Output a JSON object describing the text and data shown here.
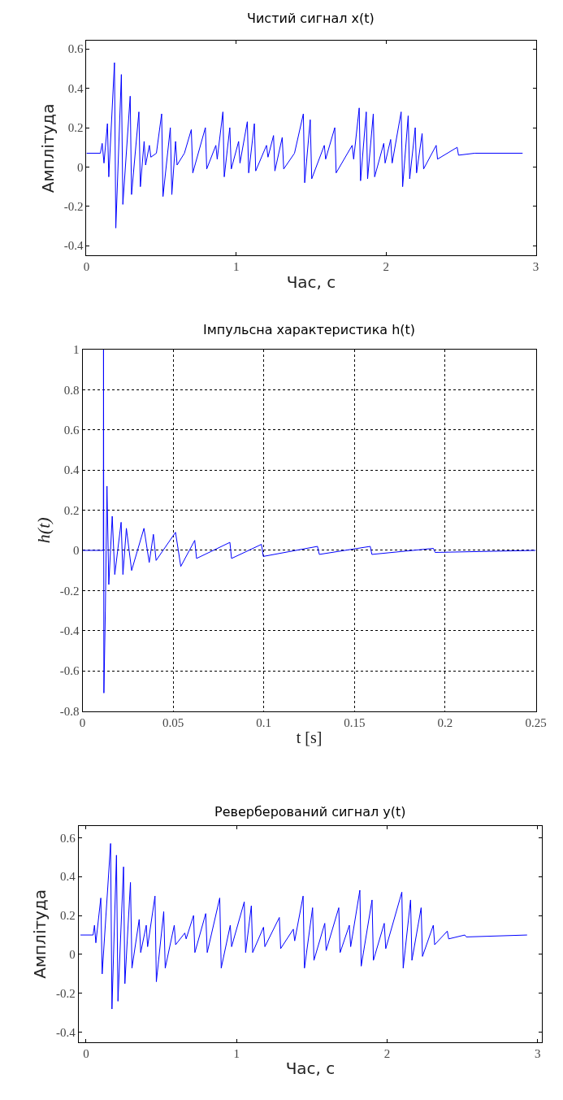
{
  "chart_data": [
    {
      "type": "line",
      "title": "Чистий сигнал x(t)",
      "xlabel": "Час, с",
      "ylabel": "Амплітуда",
      "xlim": [
        0,
        3
      ],
      "ylim": [
        -0.45,
        0.64
      ],
      "xticks": [
        0,
        1,
        2,
        3
      ],
      "yticks": [
        -0.4,
        -0.2,
        0,
        0.2,
        0.4,
        0.6
      ],
      "grid": false,
      "series": [
        {
          "color": "#0000ff",
          "x": [
            0,
            0.093,
            0.105,
            0.117,
            0.14,
            0.149,
            0.187,
            0.196,
            0.233,
            0.243,
            0.292,
            0.301,
            0.35,
            0.36,
            0.385,
            0.395,
            0.42,
            0.43,
            0.467,
            0.502,
            0.511,
            0.56,
            0.57,
            0.595,
            0.605,
            0.654,
            0.7,
            0.71,
            0.794,
            0.803,
            0.864,
            0.873,
            0.911,
            0.92,
            0.957,
            0.967,
            1.016,
            1.025,
            1.074,
            1.083,
            1.121,
            1.13,
            1.202,
            1.212,
            1.249,
            1.258,
            1.307,
            1.317,
            1.389,
            1.448,
            1.457,
            1.494,
            1.504,
            1.588,
            1.597,
            1.658,
            1.667,
            1.774,
            1.784,
            1.821,
            1.83,
            1.868,
            1.877,
            1.915,
            1.924,
            1.985,
            1.994,
            2.031,
            2.041,
            2.101,
            2.111,
            2.148,
            2.158,
            2.195,
            2.204,
            2.241,
            2.251,
            2.335,
            2.344,
            2.475,
            2.484,
            2.592,
            2.912
          ],
          "values": [
            0.07,
            0.07,
            0.12,
            0.02,
            0.22,
            -0.05,
            0.53,
            -0.31,
            0.47,
            -0.19,
            0.36,
            -0.14,
            0.28,
            -0.1,
            0.13,
            0.01,
            0.11,
            0.05,
            0.07,
            0.27,
            -0.15,
            0.2,
            -0.14,
            0.13,
            0.01,
            0.07,
            0.19,
            -0.03,
            0.2,
            -0.01,
            0.11,
            0.04,
            0.28,
            -0.05,
            0.2,
            -0.01,
            0.13,
            0.02,
            0.23,
            -0.03,
            0.22,
            -0.02,
            0.11,
            0.05,
            0.16,
            -0.02,
            0.15,
            -0.01,
            0.07,
            0.27,
            -0.08,
            0.24,
            -0.06,
            0.11,
            0.04,
            0.2,
            -0.03,
            0.11,
            0.04,
            0.3,
            -0.07,
            0.28,
            -0.06,
            0.27,
            -0.05,
            0.12,
            0.02,
            0.14,
            0.02,
            0.28,
            -0.1,
            0.26,
            -0.06,
            0.2,
            -0.03,
            0.17,
            -0.01,
            0.11,
            0.04,
            0.1,
            0.06,
            0.07,
            0.07
          ]
        }
      ]
    },
    {
      "type": "line",
      "title": "Імпульсна характеристика h(t)",
      "xlabel": "t [s]",
      "ylabel": "h(t)",
      "xlim": [
        0,
        0.25
      ],
      "ylim": [
        -0.8,
        1
      ],
      "xticks": [
        0,
        0.05,
        0.1,
        0.15,
        0.2,
        0.25
      ],
      "yticks": [
        -0.8,
        -0.6,
        -0.4,
        -0.2,
        0,
        0.2,
        0.4,
        0.6,
        0.8,
        1
      ],
      "grid": true,
      "series": [
        {
          "color": "#0000ff",
          "x": [
            0,
            0.0115,
            0.0116,
            0.0118,
            0.0126,
            0.0135,
            0.0145,
            0.0164,
            0.0178,
            0.0213,
            0.0223,
            0.0242,
            0.0271,
            0.0339,
            0.0368,
            0.0391,
            0.0406,
            0.0513,
            0.0542,
            0.0619,
            0.0629,
            0.0813,
            0.0822,
            0.0987,
            0.0997,
            0.1296,
            0.1306,
            0.1587,
            0.1596,
            0.1935,
            0.1945,
            0.25
          ],
          "values": [
            0,
            0,
            1,
            -0.71,
            -0.3,
            0.32,
            -0.17,
            0.17,
            -0.12,
            0.14,
            -0.12,
            0.11,
            -0.1,
            0.11,
            -0.06,
            0.08,
            -0.05,
            0.09,
            -0.08,
            0.05,
            -0.04,
            0.04,
            -0.04,
            0.03,
            -0.03,
            0.02,
            -0.02,
            0.02,
            -0.02,
            0.01,
            -0.01,
            0
          ]
        }
      ]
    },
    {
      "type": "line",
      "title": "Реверберований сигнал y(t)",
      "xlabel": "Час, с",
      "ylabel": "Амплітуда",
      "xlim": [
        -0.05,
        3.03
      ],
      "ylim": [
        -0.45,
        0.66
      ],
      "xticks": [
        0,
        1,
        2,
        3
      ],
      "yticks": [
        -0.4,
        -0.2,
        0,
        0.2,
        0.4,
        0.6
      ],
      "grid": false,
      "series": [
        {
          "color": "#0000ff",
          "x": [
            -0.037,
            0.047,
            0.056,
            0.065,
            0.098,
            0.107,
            0.163,
            0.172,
            0.202,
            0.212,
            0.249,
            0.258,
            0.295,
            0.305,
            0.353,
            0.363,
            0.4,
            0.409,
            0.458,
            0.467,
            0.516,
            0.526,
            0.586,
            0.595,
            0.656,
            0.665,
            0.714,
            0.723,
            0.795,
            0.805,
            0.888,
            0.898,
            0.958,
            0.967,
            1.051,
            1.06,
            1.098,
            1.107,
            1.179,
            1.188,
            1.284,
            1.293,
            1.377,
            1.386,
            1.442,
            1.451,
            1.505,
            1.514,
            1.586,
            1.595,
            1.679,
            1.688,
            1.749,
            1.758,
            1.819,
            1.828,
            1.9,
            1.909,
            1.981,
            1.991,
            2.098,
            2.107,
            2.156,
            2.165,
            2.226,
            2.235,
            2.307,
            2.316,
            2.4,
            2.409,
            2.516,
            2.526,
            2.93
          ],
          "values": [
            0.1,
            0.1,
            0.15,
            0.06,
            0.29,
            -0.1,
            0.57,
            -0.28,
            0.51,
            -0.24,
            0.45,
            -0.15,
            0.37,
            -0.07,
            0.18,
            0.01,
            0.15,
            0.04,
            0.3,
            -0.14,
            0.22,
            -0.07,
            0.15,
            0.05,
            0.11,
            0.08,
            0.2,
            0.01,
            0.21,
            0.01,
            0.29,
            -0.07,
            0.15,
            0.04,
            0.27,
            0.01,
            0.25,
            0.01,
            0.14,
            0.04,
            0.19,
            0.03,
            0.13,
            0.07,
            0.3,
            -0.07,
            0.24,
            -0.03,
            0.16,
            0.02,
            0.24,
            0.01,
            0.15,
            0.04,
            0.33,
            -0.06,
            0.28,
            -0.03,
            0.16,
            0.03,
            0.32,
            -0.07,
            0.28,
            -0.03,
            0.24,
            -0.01,
            0.15,
            0.05,
            0.12,
            0.08,
            0.1,
            0.09,
            0.1
          ]
        }
      ]
    }
  ]
}
